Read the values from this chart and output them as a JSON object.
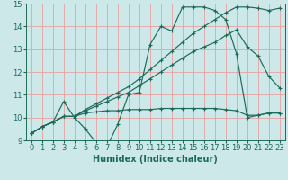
{
  "xlabel": "Humidex (Indice chaleur)",
  "xlim": [
    -0.5,
    23.5
  ],
  "ylim": [
    9,
    15
  ],
  "yticks": [
    9,
    10,
    11,
    12,
    13,
    14,
    15
  ],
  "xticks": [
    0,
    1,
    2,
    3,
    4,
    5,
    6,
    7,
    8,
    9,
    10,
    11,
    12,
    13,
    14,
    15,
    16,
    17,
    18,
    19,
    20,
    21,
    22,
    23
  ],
  "bg_color": "#cce8e8",
  "grid_color": "#e8a0a0",
  "line_color": "#1a6b5a",
  "line1_x": [
    0,
    1,
    2,
    3,
    4,
    5,
    6,
    7,
    8,
    9,
    10,
    11,
    12,
    13,
    14,
    15,
    16,
    17,
    18,
    19,
    20,
    21,
    22,
    23
  ],
  "line1_y": [
    9.3,
    9.6,
    9.8,
    10.7,
    10.0,
    9.5,
    8.9,
    8.7,
    9.7,
    11.0,
    11.1,
    13.2,
    14.0,
    13.8,
    14.85,
    14.85,
    14.85,
    14.7,
    14.3,
    12.8,
    10.0,
    10.1,
    10.2,
    10.2
  ],
  "line2_x": [
    0,
    1,
    2,
    3,
    4,
    5,
    6,
    7,
    8,
    9,
    10,
    11,
    12,
    13,
    14,
    15,
    16,
    17,
    18,
    19,
    20,
    21,
    22,
    23
  ],
  "line2_y": [
    9.3,
    9.6,
    9.8,
    10.05,
    10.05,
    10.2,
    10.25,
    10.3,
    10.3,
    10.35,
    10.35,
    10.35,
    10.4,
    10.4,
    10.4,
    10.4,
    10.4,
    10.4,
    10.35,
    10.3,
    10.1,
    10.1,
    10.2,
    10.2
  ],
  "line3_x": [
    0,
    1,
    2,
    3,
    4,
    5,
    6,
    7,
    8,
    9,
    10,
    11,
    12,
    13,
    14,
    15,
    16,
    17,
    18,
    19,
    20,
    21,
    22,
    23
  ],
  "line3_y": [
    9.3,
    9.6,
    9.8,
    10.05,
    10.05,
    10.3,
    10.5,
    10.7,
    10.9,
    11.1,
    11.4,
    11.7,
    12.0,
    12.3,
    12.6,
    12.9,
    13.1,
    13.3,
    13.6,
    13.85,
    13.1,
    12.7,
    11.8,
    11.3
  ],
  "line4_x": [
    0,
    1,
    2,
    3,
    4,
    5,
    6,
    7,
    8,
    9,
    10,
    11,
    12,
    13,
    14,
    15,
    16,
    17,
    18,
    19,
    20,
    21,
    22,
    23
  ],
  "line4_y": [
    9.3,
    9.6,
    9.8,
    10.05,
    10.05,
    10.35,
    10.6,
    10.85,
    11.1,
    11.35,
    11.7,
    12.1,
    12.5,
    12.9,
    13.3,
    13.7,
    14.0,
    14.3,
    14.6,
    14.85,
    14.85,
    14.8,
    14.7,
    14.8
  ],
  "font_size_xlabel": 7,
  "font_size_ticks": 6
}
